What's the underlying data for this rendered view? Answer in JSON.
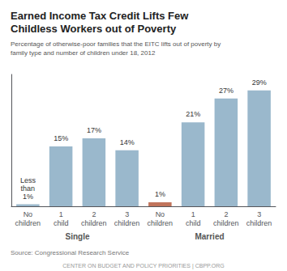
{
  "chart_data": {
    "type": "bar",
    "title": "Earned Income Tax Credit Lifts Few\nChildless Workers out of Poverty",
    "subtitle": "Percentage of otherwise-poor families that the EITC lifts out of poverty by\nfamily type and number of children under 18, 2012",
    "source": "Source: Congressional Research Service",
    "footer": "CENTER ON BUDGET AND POLICY PRIORITIES | CBPP.ORG",
    "categories": [
      "No\nchildren",
      "1\nchild",
      "2\nchildren",
      "3\nchildren",
      "No\nchildren",
      "1\nchild",
      "2\nchildren",
      "3\nchildren"
    ],
    "group_labels": [
      "Single",
      "Married"
    ],
    "values": [
      0.5,
      15,
      17,
      14,
      1,
      21,
      27,
      29
    ],
    "value_labels": [
      "Less\nthan\n1%",
      "15%",
      "17%",
      "14%",
      "1%",
      "21%",
      "27%",
      "29%"
    ],
    "colors": [
      "#9ab8cc",
      "#9ab8cc",
      "#9ab8cc",
      "#9ab8cc",
      "#c0735a",
      "#9ab8cc",
      "#9ab8cc",
      "#9ab8cc"
    ],
    "ylim": [
      0,
      33
    ],
    "grid": false,
    "tick_labels": "x"
  }
}
